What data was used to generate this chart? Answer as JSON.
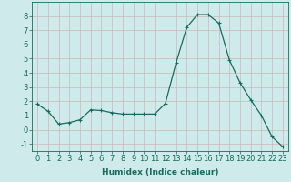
{
  "x": [
    0,
    1,
    2,
    3,
    4,
    5,
    6,
    7,
    8,
    9,
    10,
    11,
    12,
    13,
    14,
    15,
    16,
    17,
    18,
    19,
    20,
    21,
    22,
    23
  ],
  "y": [
    1.8,
    1.3,
    0.4,
    0.5,
    0.7,
    1.4,
    1.35,
    1.2,
    1.1,
    1.1,
    1.1,
    1.1,
    1.85,
    4.7,
    7.2,
    8.1,
    8.1,
    7.5,
    4.9,
    3.3,
    2.1,
    1.0,
    -0.5,
    -1.2
  ],
  "line_color": "#1a6b5e",
  "marker": "+",
  "marker_size": 3,
  "marker_linewidth": 0.8,
  "bg_color": "#ceeaea",
  "grid_color": "#c8b8b8",
  "xlabel": "Humidex (Indice chaleur)",
  "xlim": [
    -0.5,
    23.5
  ],
  "ylim": [
    -1.5,
    9.0
  ],
  "yticks": [
    -1,
    0,
    1,
    2,
    3,
    4,
    5,
    6,
    7,
    8
  ],
  "xticks": [
    0,
    1,
    2,
    3,
    4,
    5,
    6,
    7,
    8,
    9,
    10,
    11,
    12,
    13,
    14,
    15,
    16,
    17,
    18,
    19,
    20,
    21,
    22,
    23
  ],
  "axis_color": "#1a6b5e",
  "tick_color": "#1a6b5e",
  "label_fontsize": 6,
  "xlabel_fontsize": 6.5,
  "linewidth": 0.9
}
